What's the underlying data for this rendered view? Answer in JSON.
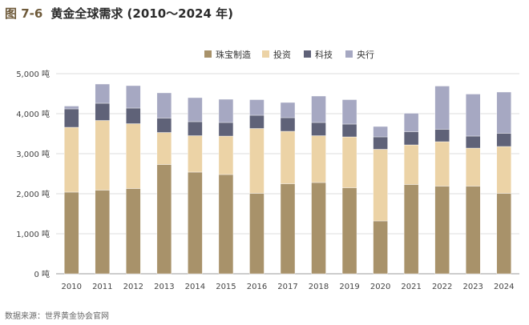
{
  "figure": {
    "number": "图 7-6",
    "title": "黄金全球需求 (2010～2024 年)",
    "source": "数据来源：世界黄金协会官网"
  },
  "chart_data": {
    "type": "bar",
    "stacked": true,
    "categories": [
      "2010",
      "2011",
      "2012",
      "2013",
      "2014",
      "2015",
      "2016",
      "2017",
      "2018",
      "2019",
      "2020",
      "2021",
      "2022",
      "2023",
      "2024"
    ],
    "series": [
      {
        "name": "珠宝制造",
        "color": "#a8926a",
        "values": [
          2040,
          2090,
          2130,
          2730,
          2540,
          2480,
          2010,
          2250,
          2280,
          2150,
          1320,
          2230,
          2190,
          2190,
          2010
        ]
      },
      {
        "name": "投资",
        "color": "#ecd3a6",
        "values": [
          1620,
          1740,
          1620,
          800,
          910,
          960,
          1620,
          1310,
          1170,
          1270,
          1790,
          990,
          1110,
          950,
          1170
        ]
      },
      {
        "name": "科技",
        "color": "#5f6278",
        "values": [
          460,
          430,
          390,
          360,
          350,
          340,
          330,
          340,
          330,
          320,
          310,
          330,
          310,
          300,
          330
        ]
      },
      {
        "name": "央行",
        "color": "#a6a8c2",
        "values": [
          70,
          480,
          560,
          630,
          600,
          580,
          390,
          380,
          660,
          610,
          260,
          460,
          1080,
          1050,
          1030
        ]
      }
    ],
    "y_tick_labels": [
      "0 吨",
      "1,000 吨",
      "2,000 吨",
      "3,000 吨",
      "4,000 吨",
      "5,000 吨"
    ],
    "ylim": [
      0,
      5000
    ],
    "grid": true,
    "legend_position": "top-center"
  }
}
